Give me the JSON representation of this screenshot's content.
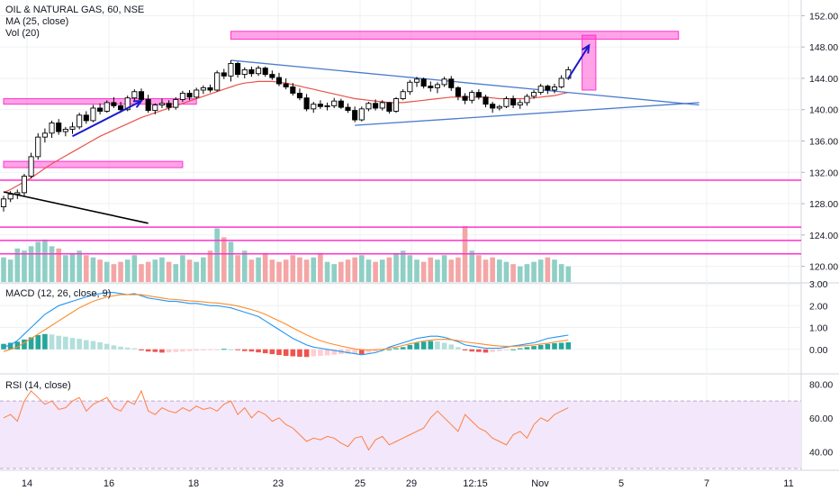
{
  "header": {
    "symbol_line": "OIL & NATURAL GAS, 60, NSE",
    "ma_label": "MA (25, close)",
    "vol_label": "Vol (20)"
  },
  "macd_pane": {
    "label": "MACD (12, 26, close, 9)"
  },
  "rsi_pane": {
    "label": "RSI (14, close)"
  },
  "colors": {
    "up": "#26a69a",
    "down": "#ef5350",
    "up_vol": "#8fcfc5",
    "down_vol": "#f4a6a6",
    "ma": "#e8534a",
    "macd_line": "#2196f3",
    "signal_line": "#ff8c2a",
    "rsi_line": "#ff7f3f",
    "rsi_band": "#f3e7fb",
    "zone": "#ff33cc",
    "trend": "#4a7bd0",
    "arrow": "#1a1acc",
    "axis_text": "#131722",
    "grid": "#eef0f3"
  },
  "chart_data": [
    {
      "type": "candlestick",
      "title": "OIL & NATURAL GAS, 60, NSE",
      "ylim": [
        118,
        154
      ],
      "y_ticks": [
        "152.00",
        "148.00",
        "144.00",
        "140.00",
        "136.00",
        "132.00",
        "128.00",
        "124.00",
        "120.00"
      ],
      "x_ticks": [
        "14",
        "16",
        "18",
        "23",
        "25",
        "29",
        "12:15",
        "Nov",
        "5",
        "7",
        "11"
      ],
      "ohlc": [
        [
          127.6,
          129.0,
          127.0,
          128.6
        ],
        [
          128.6,
          129.6,
          128.2,
          129.2
        ],
        [
          129.2,
          129.8,
          128.6,
          129.4
        ],
        [
          129.4,
          131.8,
          129.0,
          131.5
        ],
        [
          131.5,
          134.5,
          131.2,
          134.0
        ],
        [
          134.0,
          137.0,
          133.6,
          136.5
        ],
        [
          136.5,
          137.6,
          135.8,
          137.0
        ],
        [
          137.0,
          138.6,
          136.4,
          138.3
        ],
        [
          138.3,
          138.8,
          136.8,
          137.2
        ],
        [
          137.2,
          137.8,
          136.6,
          137.5
        ],
        [
          137.5,
          138.4,
          136.9,
          137.8
        ],
        [
          137.8,
          139.6,
          137.5,
          139.3
        ],
        [
          139.3,
          139.8,
          138.2,
          138.6
        ],
        [
          138.6,
          140.6,
          138.4,
          140.2
        ],
        [
          140.2,
          140.8,
          139.4,
          139.8
        ],
        [
          139.8,
          141.2,
          139.6,
          140.9
        ],
        [
          140.9,
          141.6,
          140.2,
          140.5
        ],
        [
          140.5,
          141.0,
          139.6,
          140.0
        ],
        [
          140.0,
          141.8,
          139.8,
          141.5
        ],
        [
          141.5,
          142.6,
          141.0,
          142.3
        ],
        [
          142.3,
          142.7,
          141.0,
          141.3
        ],
        [
          141.3,
          141.9,
          139.6,
          139.9
        ],
        [
          139.9,
          140.8,
          139.4,
          140.6
        ],
        [
          140.6,
          141.4,
          140.2,
          140.8
        ],
        [
          140.8,
          141.2,
          139.9,
          140.3
        ],
        [
          140.3,
          141.6,
          140.0,
          141.3
        ],
        [
          141.3,
          142.4,
          141.0,
          142.1
        ],
        [
          142.1,
          142.5,
          141.2,
          141.6
        ],
        [
          141.6,
          142.8,
          141.4,
          142.5
        ],
        [
          142.5,
          143.1,
          142.0,
          142.8
        ],
        [
          142.8,
          143.2,
          142.2,
          142.5
        ],
        [
          142.5,
          145.0,
          142.3,
          144.7
        ],
        [
          144.7,
          145.2,
          143.9,
          144.3
        ],
        [
          144.3,
          146.3,
          143.6,
          145.9
        ],
        [
          145.9,
          146.1,
          144.1,
          144.5
        ],
        [
          144.5,
          145.4,
          144.0,
          145.1
        ],
        [
          145.1,
          145.5,
          144.2,
          144.6
        ],
        [
          144.6,
          145.6,
          144.3,
          145.3
        ],
        [
          145.3,
          145.5,
          144.2,
          144.5
        ],
        [
          144.5,
          145.0,
          143.8,
          144.1
        ],
        [
          144.1,
          144.7,
          143.0,
          143.3
        ],
        [
          143.3,
          144.0,
          142.6,
          142.9
        ],
        [
          142.9,
          143.4,
          141.8,
          142.1
        ],
        [
          142.1,
          142.7,
          141.2,
          141.5
        ],
        [
          141.5,
          142.0,
          139.8,
          140.1
        ],
        [
          140.1,
          141.0,
          139.6,
          140.7
        ],
        [
          140.7,
          141.2,
          140.1,
          140.4
        ],
        [
          140.4,
          140.9,
          139.9,
          140.5
        ],
        [
          140.5,
          141.5,
          140.2,
          141.1
        ],
        [
          141.1,
          141.4,
          140.1,
          140.3
        ],
        [
          140.3,
          140.8,
          139.6,
          139.9
        ],
        [
          139.9,
          140.4,
          138.4,
          138.7
        ],
        [
          138.7,
          140.4,
          138.5,
          140.1
        ],
        [
          140.1,
          141.0,
          139.8,
          140.8
        ],
        [
          140.8,
          141.3,
          139.9,
          140.2
        ],
        [
          140.2,
          141.2,
          139.9,
          140.9
        ],
        [
          140.9,
          141.0,
          139.5,
          139.8
        ],
        [
          139.8,
          141.6,
          139.6,
          141.4
        ],
        [
          141.4,
          142.6,
          141.2,
          142.3
        ],
        [
          142.3,
          143.8,
          141.9,
          143.5
        ],
        [
          143.5,
          144.2,
          142.9,
          143.9
        ],
        [
          143.9,
          144.1,
          142.7,
          143.0
        ],
        [
          143.0,
          143.6,
          142.3,
          142.8
        ],
        [
          142.8,
          143.5,
          142.1,
          143.2
        ],
        [
          143.2,
          144.2,
          142.9,
          143.9
        ],
        [
          143.9,
          144.3,
          142.4,
          142.8
        ],
        [
          142.8,
          143.0,
          141.2,
          141.7
        ],
        [
          141.7,
          142.1,
          140.7,
          141.2
        ],
        [
          141.2,
          142.5,
          140.8,
          142.2
        ],
        [
          142.2,
          142.6,
          141.3,
          141.6
        ],
        [
          141.6,
          141.9,
          140.3,
          140.7
        ],
        [
          140.7,
          141.0,
          139.6,
          140.2
        ],
        [
          140.2,
          140.6,
          139.9,
          140.4
        ],
        [
          140.4,
          141.7,
          140.2,
          141.4
        ],
        [
          141.4,
          141.8,
          140.2,
          140.6
        ],
        [
          140.6,
          141.3,
          140.1,
          140.9
        ],
        [
          140.9,
          142.0,
          140.5,
          141.7
        ],
        [
          141.7,
          142.5,
          141.4,
          142.2
        ],
        [
          142.2,
          143.3,
          141.9,
          143.0
        ],
        [
          143.0,
          143.2,
          142.0,
          142.5
        ],
        [
          142.5,
          143.3,
          142.1,
          142.9
        ],
        [
          142.9,
          144.4,
          142.7,
          144.0
        ],
        [
          144.0,
          145.5,
          143.8,
          145.1
        ]
      ],
      "moving_average": [
        129.4,
        129.8,
        130.3,
        130.8,
        131.3,
        131.9,
        132.5,
        133.1,
        133.6,
        134.1,
        134.6,
        135.1,
        135.6,
        136.1,
        136.6,
        137.0,
        137.4,
        137.8,
        138.2,
        138.6,
        139.0,
        139.3,
        139.6,
        139.9,
        140.2,
        140.5,
        140.8,
        141.1,
        141.4,
        141.7,
        142.0,
        142.3,
        142.6,
        142.9,
        143.2,
        143.4,
        143.5,
        143.6,
        143.6,
        143.6,
        143.5,
        143.4,
        143.2,
        143.0,
        142.8,
        142.6,
        142.4,
        142.2,
        142.0,
        141.8,
        141.6,
        141.4,
        141.3,
        141.2,
        141.1,
        141.0,
        140.9,
        140.9,
        140.9,
        141.0,
        141.1,
        141.2,
        141.3,
        141.4,
        141.5,
        141.6,
        141.6,
        141.6,
        141.6,
        141.6,
        141.6,
        141.5,
        141.4,
        141.4,
        141.4,
        141.4,
        141.4,
        141.5,
        141.6,
        141.7,
        141.8,
        142.0,
        142.2
      ],
      "volume": [
        22,
        20,
        30,
        28,
        32,
        36,
        38,
        32,
        30,
        24,
        26,
        28,
        24,
        22,
        20,
        18,
        16,
        18,
        20,
        24,
        16,
        18,
        20,
        22,
        18,
        16,
        24,
        20,
        18,
        22,
        28,
        48,
        40,
        36,
        24,
        28,
        20,
        22,
        26,
        20,
        18,
        20,
        24,
        22,
        20,
        22,
        26,
        18,
        16,
        18,
        20,
        22,
        24,
        20,
        18,
        20,
        22,
        26,
        28,
        24,
        20,
        18,
        22,
        20,
        24,
        20,
        22,
        50,
        28,
        24,
        20,
        22,
        20,
        18,
        16,
        14,
        16,
        18,
        20,
        22,
        20,
        16,
        14
      ],
      "horizontal_zones": [
        {
          "y1": 140.7,
          "y2": 141.4,
          "x0": 0,
          "x1": 28
        },
        {
          "y1": 132.6,
          "y2": 133.4,
          "x0": 0,
          "x1": 26
        },
        {
          "y1": 149.0,
          "y2": 150.0,
          "x0": 33,
          "x1": 98
        },
        {
          "y1": 142.5,
          "y2": 149.5,
          "x0": 84,
          "x1": 86
        }
      ],
      "horizontal_lines": [
        131.0,
        125.0,
        123.3,
        121.6
      ],
      "trendlines": [
        {
          "x0": 33,
          "y0": 146.3,
          "x1": 101,
          "y1": 140.6,
          "color": "trend"
        },
        {
          "x0": 51,
          "y0": 138.0,
          "x1": 101,
          "y1": 140.9,
          "color": "trend"
        },
        {
          "x0": 0,
          "y0": 129.5,
          "x1": 21,
          "y1": 125.5,
          "color": "black"
        }
      ],
      "arrows": [
        {
          "x0": 10,
          "y0": 136.6,
          "x1": 20,
          "y1": 141.1
        },
        {
          "x0": 82,
          "y0": 144.0,
          "x1": 85,
          "y1": 148.2
        }
      ]
    },
    {
      "type": "bar",
      "title": "MACD (12, 26, close, 9)",
      "ylim": [
        -1.0,
        3.0
      ],
      "y_ticks": [
        "3.00",
        "2.00",
        "1.00",
        "0.00"
      ],
      "histogram": [
        0.25,
        0.3,
        0.35,
        0.45,
        0.55,
        0.65,
        0.7,
        0.68,
        0.62,
        0.58,
        0.52,
        0.48,
        0.42,
        0.38,
        0.32,
        0.25,
        0.18,
        0.12,
        0.08,
        0.05,
        -0.05,
        -0.1,
        -0.12,
        -0.15,
        -0.14,
        -0.12,
        -0.1,
        -0.08,
        -0.06,
        -0.05,
        -0.04,
        -0.02,
        0.02,
        0.0,
        -0.04,
        -0.08,
        -0.1,
        -0.14,
        -0.18,
        -0.22,
        -0.26,
        -0.3,
        -0.32,
        -0.34,
        -0.35,
        -0.32,
        -0.3,
        -0.28,
        -0.25,
        -0.22,
        -0.2,
        -0.2,
        -0.22,
        -0.15,
        -0.1,
        -0.05,
        0.0,
        0.05,
        0.1,
        0.2,
        0.3,
        0.35,
        0.38,
        0.36,
        0.3,
        0.22,
        0.1,
        -0.05,
        -0.1,
        -0.12,
        -0.15,
        -0.12,
        -0.08,
        -0.04,
        0.0,
        0.05,
        0.1,
        0.15,
        0.2,
        0.25,
        0.28,
        0.3,
        0.32
      ],
      "macd": [
        0.1,
        0.2,
        0.4,
        0.7,
        1.0,
        1.3,
        1.6,
        1.8,
        2.0,
        2.1,
        2.2,
        2.3,
        2.4,
        2.5,
        2.55,
        2.6,
        2.6,
        2.55,
        2.5,
        2.55,
        2.45,
        2.35,
        2.3,
        2.25,
        2.2,
        2.2,
        2.15,
        2.1,
        2.1,
        2.05,
        2.0,
        2.0,
        1.95,
        1.9,
        1.8,
        1.7,
        1.6,
        1.5,
        1.3,
        1.1,
        0.9,
        0.7,
        0.5,
        0.35,
        0.2,
        0.1,
        0.05,
        0.0,
        -0.05,
        -0.1,
        -0.15,
        -0.2,
        -0.25,
        -0.2,
        -0.15,
        -0.05,
        0.1,
        0.2,
        0.3,
        0.4,
        0.5,
        0.55,
        0.6,
        0.6,
        0.55,
        0.45,
        0.35,
        0.2,
        0.15,
        0.1,
        0.05,
        0.05,
        0.05,
        0.1,
        0.15,
        0.2,
        0.25,
        0.3,
        0.4,
        0.5,
        0.55,
        0.6,
        0.65
      ],
      "signal": [
        -0.1,
        0.0,
        0.1,
        0.3,
        0.5,
        0.7,
        0.9,
        1.1,
        1.3,
        1.5,
        1.7,
        1.9,
        2.05,
        2.2,
        2.3,
        2.4,
        2.45,
        2.5,
        2.5,
        2.5,
        2.5,
        2.45,
        2.4,
        2.35,
        2.3,
        2.28,
        2.25,
        2.22,
        2.2,
        2.17,
        2.14,
        2.12,
        2.08,
        2.04,
        1.98,
        1.9,
        1.82,
        1.72,
        1.6,
        1.45,
        1.3,
        1.15,
        0.98,
        0.82,
        0.66,
        0.52,
        0.4,
        0.3,
        0.22,
        0.15,
        0.08,
        0.02,
        -0.02,
        -0.03,
        -0.02,
        0.0,
        0.05,
        0.1,
        0.18,
        0.25,
        0.32,
        0.38,
        0.42,
        0.45,
        0.46,
        0.44,
        0.4,
        0.34,
        0.3,
        0.26,
        0.22,
        0.18,
        0.15,
        0.14,
        0.14,
        0.15,
        0.17,
        0.2,
        0.24,
        0.28,
        0.33,
        0.38,
        0.42
      ]
    },
    {
      "type": "line",
      "title": "RSI (14, close)",
      "ylim": [
        30,
        85
      ],
      "y_ticks": [
        "80.00",
        "60.00",
        "40.00"
      ],
      "band": [
        30,
        70
      ],
      "rsi": [
        60,
        62,
        58,
        70,
        76,
        72,
        68,
        70,
        65,
        66,
        70,
        72,
        64,
        68,
        70,
        72,
        66,
        64,
        70,
        68,
        76,
        64,
        62,
        66,
        64,
        63,
        66,
        64,
        67,
        65,
        66,
        64,
        68,
        70,
        62,
        66,
        60,
        64,
        62,
        58,
        60,
        56,
        54,
        50,
        46,
        48,
        47,
        49,
        48,
        45,
        43,
        48,
        49,
        41,
        47,
        49,
        44,
        46,
        48,
        50,
        52,
        54,
        60,
        64,
        60,
        56,
        52,
        62,
        58,
        54,
        52,
        48,
        46,
        44,
        50,
        52,
        48,
        56,
        60,
        58,
        62,
        64,
        66
      ]
    }
  ]
}
